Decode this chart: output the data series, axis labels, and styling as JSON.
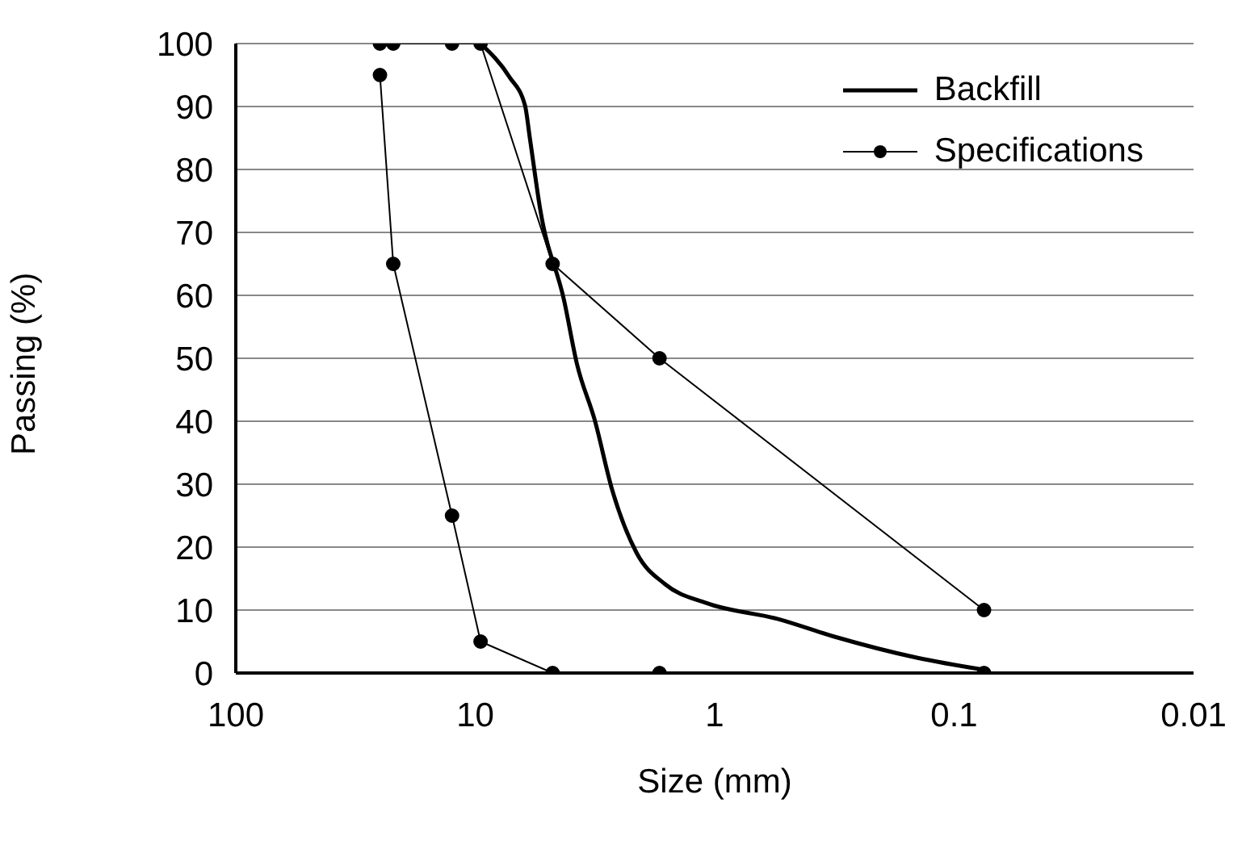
{
  "chart_data": {
    "type": "line",
    "xlabel": "Size (mm)",
    "ylabel": "Passing (%)",
    "log": "x",
    "xlim": [
      100,
      0.01
    ],
    "xticks": [
      100,
      10,
      1,
      0.1,
      0.01
    ],
    "ylim": [
      0,
      100
    ],
    "yticks": [
      0,
      10,
      20,
      30,
      40,
      50,
      60,
      70,
      80,
      90,
      100
    ],
    "grid": "y",
    "legend": "top right",
    "series": [
      {
        "name": "Backfill",
        "color": "#000000",
        "marker": "none",
        "x": [
          9.5,
          7.2,
          6.2,
          5.9,
          5.35,
          4.25,
          3.76,
          3.17,
          2.68,
          2.12,
          1.61,
          1.08,
          0.547,
          0.318,
          0.142,
          0.075
        ],
        "values": [
          100,
          94.7,
          90.2,
          84.7,
          73.6,
          59.1,
          49.1,
          40.2,
          29.1,
          19.1,
          14.1,
          11.1,
          8.6,
          5.8,
          2.4,
          0.5
        ]
      },
      {
        "name": "Specifications",
        "color": "#000000",
        "marker": "circle",
        "x": [
          25,
          22,
          12.5,
          9.5,
          4.75,
          1.7,
          0.075
        ],
        "values": [
          100,
          100,
          100,
          100,
          65,
          50,
          10
        ]
      },
      {
        "color": "#000000",
        "marker": "circle",
        "x": [
          25,
          22,
          12.5,
          9.5,
          4.75,
          1.7,
          0.075
        ],
        "values": [
          95,
          65,
          25,
          5,
          0,
          0,
          0
        ]
      }
    ]
  }
}
